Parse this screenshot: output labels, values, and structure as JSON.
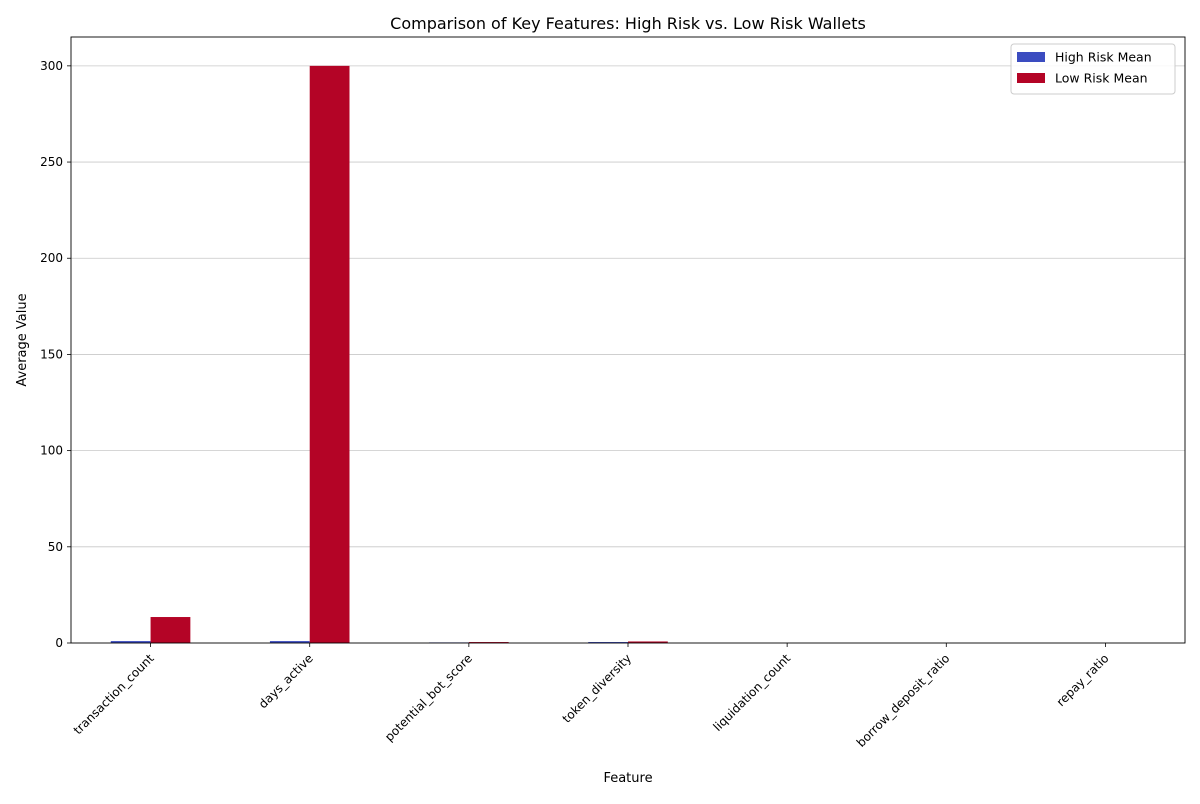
{
  "chart_data": {
    "type": "bar",
    "title": "Comparison of Key Features: High Risk vs. Low Risk Wallets",
    "xlabel": "Feature",
    "ylabel": "Average Value",
    "categories": [
      "transaction_count",
      "days_active",
      "potential_bot_score",
      "token_diversity",
      "liquidation_count",
      "borrow_deposit_ratio",
      "repay_ratio"
    ],
    "series": [
      {
        "name": "High Risk Mean",
        "color": "#3b4cc0",
        "values": [
          1.0,
          1.0,
          0.3,
          0.5,
          0.0,
          0.0,
          0.0
        ]
      },
      {
        "name": "Low Risk Mean",
        "color": "#b40426",
        "values": [
          13.5,
          300.0,
          0.5,
          0.8,
          0.0,
          0.0,
          0.0
        ]
      }
    ],
    "ylim": [
      0,
      315
    ],
    "yticks": [
      0,
      50,
      100,
      150,
      200,
      250,
      300
    ],
    "grid": "y",
    "legend_position": "top-right"
  }
}
